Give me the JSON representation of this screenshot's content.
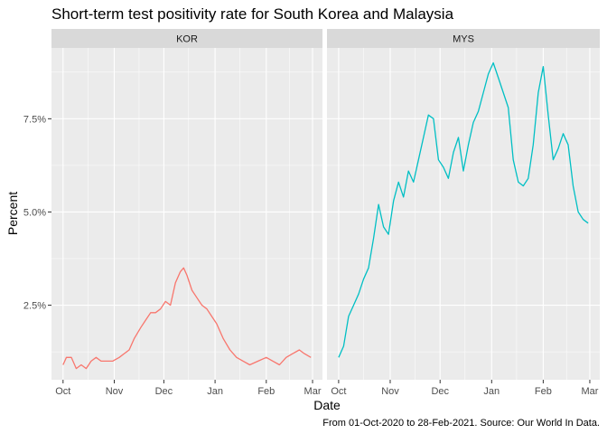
{
  "chart_data": {
    "type": "line",
    "title": "Short-term test positivity rate for South Korea and Malaysia",
    "xlabel": "Date",
    "ylabel": "Percent",
    "caption": "From 01-Oct-2020 to 28-Feb-2021. Source: Our World In Data.",
    "x_ticks": [
      "Oct",
      "Nov",
      "Dec",
      "Jan",
      "Feb",
      "Mar"
    ],
    "y_ticks": [
      "2.5%",
      "5.0%",
      "7.5%"
    ],
    "y_tick_values": [
      2.5,
      5.0,
      7.5
    ],
    "ylim": [
      0.5,
      9.4
    ],
    "xlim": [
      "2020-09-24",
      "2021-03-07"
    ],
    "grid": true,
    "legend": "none",
    "colors": {
      "KOR": "#F8766D",
      "MYS": "#00BFC4",
      "panel_bg": "#EBEBEB",
      "strip_bg": "#D9D9D9",
      "grid": "#FFFFFF"
    },
    "series": [
      {
        "name": "KOR",
        "x": [
          "2020-10-01",
          "2020-10-03",
          "2020-10-06",
          "2020-10-09",
          "2020-10-12",
          "2020-10-15",
          "2020-10-18",
          "2020-10-21",
          "2020-10-24",
          "2020-10-27",
          "2020-10-31",
          "2020-11-04",
          "2020-11-07",
          "2020-11-10",
          "2020-11-13",
          "2020-11-17",
          "2020-11-20",
          "2020-11-23",
          "2020-11-26",
          "2020-11-29",
          "2020-12-02",
          "2020-12-05",
          "2020-12-08",
          "2020-12-11",
          "2020-12-13",
          "2020-12-15",
          "2020-12-18",
          "2020-12-21",
          "2020-12-24",
          "2020-12-27",
          "2020-12-30",
          "2021-01-02",
          "2021-01-06",
          "2021-01-10",
          "2021-01-14",
          "2021-01-18",
          "2021-01-22",
          "2021-01-27",
          "2021-02-01",
          "2021-02-05",
          "2021-02-09",
          "2021-02-13",
          "2021-02-17",
          "2021-02-21",
          "2021-02-24",
          "2021-02-28"
        ],
        "values": [
          0.9,
          1.1,
          1.1,
          0.8,
          0.9,
          0.8,
          1.0,
          1.1,
          1.0,
          1.0,
          1.0,
          1.1,
          1.2,
          1.3,
          1.6,
          1.9,
          2.1,
          2.3,
          2.3,
          2.4,
          2.6,
          2.5,
          3.1,
          3.4,
          3.5,
          3.3,
          2.9,
          2.7,
          2.5,
          2.4,
          2.2,
          2.0,
          1.6,
          1.3,
          1.1,
          1.0,
          0.9,
          1.0,
          1.1,
          1.0,
          0.9,
          1.1,
          1.2,
          1.3,
          1.2,
          1.1
        ]
      },
      {
        "name": "MYS",
        "x": [
          "2020-10-01",
          "2020-10-04",
          "2020-10-07",
          "2020-10-10",
          "2020-10-13",
          "2020-10-16",
          "2020-10-19",
          "2020-10-22",
          "2020-10-25",
          "2020-10-28",
          "2020-10-31",
          "2020-11-03",
          "2020-11-06",
          "2020-11-09",
          "2020-11-12",
          "2020-11-15",
          "2020-11-18",
          "2020-11-21",
          "2020-11-24",
          "2020-11-27",
          "2020-11-30",
          "2020-12-03",
          "2020-12-06",
          "2020-12-09",
          "2020-12-12",
          "2020-12-15",
          "2020-12-18",
          "2020-12-21",
          "2020-12-24",
          "2020-12-27",
          "2020-12-30",
          "2021-01-02",
          "2021-01-05",
          "2021-01-08",
          "2021-01-11",
          "2021-01-14",
          "2021-01-17",
          "2021-01-20",
          "2021-01-23",
          "2021-01-26",
          "2021-01-29",
          "2021-02-01",
          "2021-02-04",
          "2021-02-07",
          "2021-02-10",
          "2021-02-13",
          "2021-02-16",
          "2021-02-19",
          "2021-02-22",
          "2021-02-25",
          "2021-02-28"
        ],
        "values": [
          1.1,
          1.4,
          2.2,
          2.5,
          2.8,
          3.2,
          3.5,
          4.3,
          5.2,
          4.6,
          4.4,
          5.3,
          5.8,
          5.4,
          6.1,
          5.8,
          6.4,
          7.0,
          7.6,
          7.5,
          6.4,
          6.2,
          5.9,
          6.6,
          7.0,
          6.1,
          6.8,
          7.4,
          7.7,
          8.2,
          8.7,
          9.0,
          8.6,
          8.2,
          7.8,
          6.4,
          5.8,
          5.7,
          5.9,
          6.8,
          8.2,
          8.9,
          7.6,
          6.4,
          6.7,
          7.1,
          6.8,
          5.7,
          5.0,
          4.8,
          4.7
        ]
      }
    ]
  },
  "panels": [
    {
      "strip_label": "KOR"
    },
    {
      "strip_label": "MYS"
    }
  ]
}
